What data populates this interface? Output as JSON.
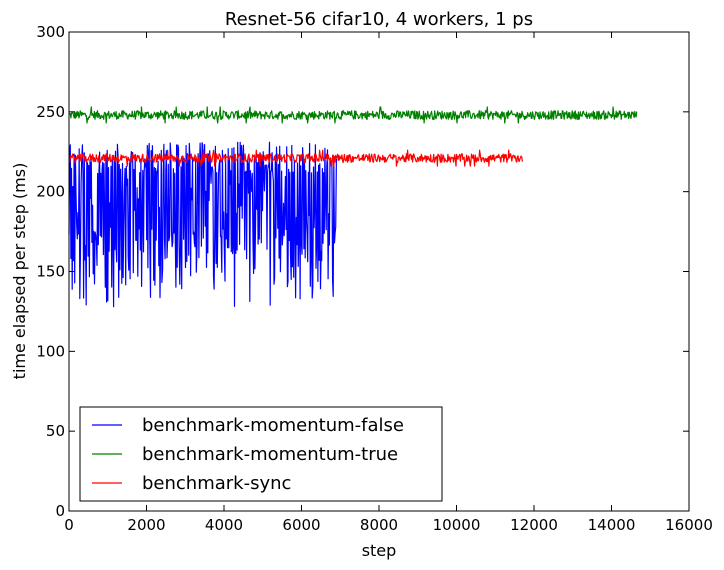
{
  "chart_data": {
    "type": "line",
    "title": "Resnet-56 cifar10, 4 workers, 1 ps",
    "xlabel": "step",
    "ylabel": "time elapsed per step (ms)",
    "xlim": [
      0,
      16000
    ],
    "ylim": [
      0,
      300
    ],
    "xticks": [
      0,
      2000,
      4000,
      6000,
      8000,
      10000,
      12000,
      14000,
      16000
    ],
    "yticks": [
      0,
      50,
      100,
      150,
      200,
      250,
      300
    ],
    "grid": false,
    "legend_position": "lower-left",
    "series": [
      {
        "name": "benchmark-momentum-false",
        "color": "#0000ff",
        "x_range": [
          0,
          6900
        ],
        "mean": 187,
        "min": 128,
        "max": 231,
        "pattern": "oscillating"
      },
      {
        "name": "benchmark-momentum-true",
        "color": "#008000",
        "x_range": [
          0,
          14650
        ],
        "mean": 248,
        "min": 243,
        "max": 253,
        "pattern": "noisy"
      },
      {
        "name": "benchmark-sync",
        "color": "#ff0000",
        "x_range": [
          0,
          11700
        ],
        "mean": 221,
        "min": 216,
        "max": 226,
        "pattern": "noisy"
      }
    ]
  }
}
